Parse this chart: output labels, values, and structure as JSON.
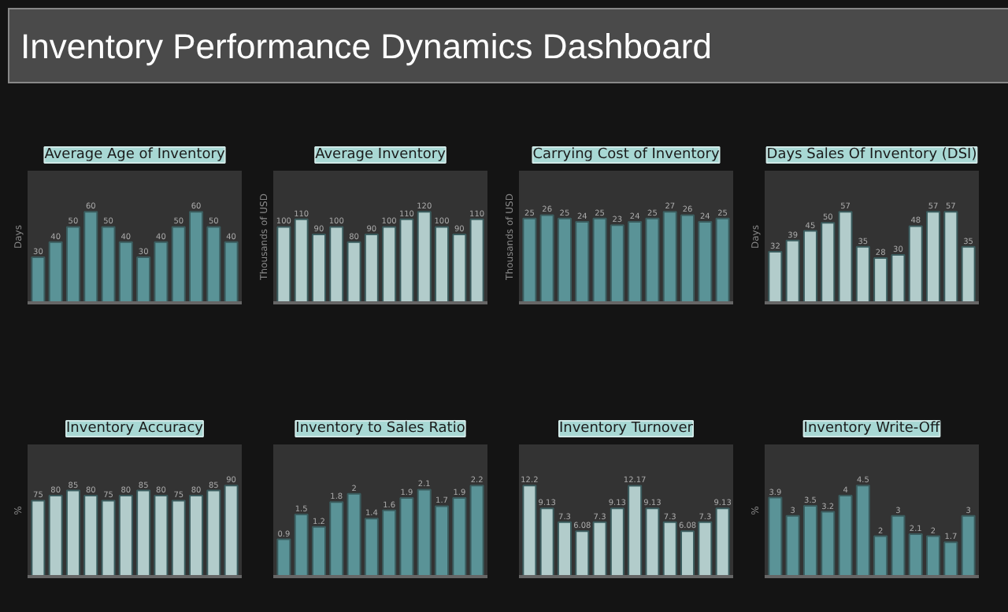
{
  "chart_data": [
    {
      "type": "other",
      "title": "Inventory Performance Dynamics Dashboard"
    },
    {
      "type": "bar",
      "title": "Average Age of Inventory",
      "ylabel": "Days",
      "categories": [
        null,
        null,
        null,
        null,
        null,
        null,
        null,
        null,
        null,
        null,
        null,
        null
      ],
      "values": [
        30,
        40,
        50,
        60,
        50,
        40,
        30,
        40,
        50,
        60,
        50,
        40
      ],
      "color": "#5a9397",
      "data_labels": true,
      "grid": false
    },
    {
      "type": "bar",
      "title": "Average Inventory",
      "ylabel": "Thousands of USD",
      "categories": [
        null,
        null,
        null,
        null,
        null,
        null,
        null,
        null,
        null,
        null,
        null,
        null
      ],
      "values": [
        100,
        110,
        90,
        100,
        80,
        90,
        100,
        110,
        120,
        100,
        90,
        110
      ],
      "color": "#b2cccb",
      "data_labels": true,
      "grid": false
    },
    {
      "type": "bar",
      "title": "Carrying Cost of Inventory",
      "ylabel": "Thousands of USD",
      "categories": [
        null,
        null,
        null,
        null,
        null,
        null,
        null,
        null,
        null,
        null,
        null,
        null
      ],
      "values": [
        25,
        26,
        25,
        24,
        25,
        23,
        24,
        25,
        27,
        26,
        24,
        25
      ],
      "color": "#5a9397",
      "data_labels": true,
      "grid": false
    },
    {
      "type": "bar",
      "title": "Days Sales Of Inventory (DSI)",
      "ylabel": "Days",
      "categories": [
        null,
        null,
        null,
        null,
        null,
        null,
        null,
        null,
        null,
        null,
        null,
        null
      ],
      "values": [
        32,
        39,
        45,
        50,
        57,
        35,
        28,
        30,
        48,
        57,
        57,
        35
      ],
      "color": "#b2cccb",
      "data_labels": true,
      "grid": false
    },
    {
      "type": "bar",
      "title": "Inventory Accuracy",
      "ylabel": "%",
      "categories": [
        null,
        null,
        null,
        null,
        null,
        null,
        null,
        null,
        null,
        null,
        null,
        null
      ],
      "values": [
        75,
        80,
        85,
        80,
        75,
        80,
        85,
        80,
        75,
        80,
        85,
        90
      ],
      "color": "#b2cccb",
      "data_labels": true,
      "grid": false
    },
    {
      "type": "bar",
      "title": "Inventory to Sales Ratio",
      "categories": [
        null,
        null,
        null,
        null,
        null,
        null,
        null,
        null,
        null,
        null,
        null,
        null
      ],
      "values": [
        0.9,
        1.5,
        1.2,
        1.8,
        2,
        1.4,
        1.6,
        1.9,
        2.1,
        1.7,
        1.9,
        2.2
      ],
      "color": "#5a9397",
      "data_labels": true,
      "grid": false
    },
    {
      "type": "bar",
      "title": "Inventory Turnover",
      "categories": [
        null,
        null,
        null,
        null,
        null,
        null,
        null,
        null,
        null,
        null,
        null,
        null
      ],
      "values": [
        12.2,
        9.13,
        7.3,
        6.08,
        7.3,
        9.13,
        12.17,
        9.13,
        7.3,
        6.08,
        7.3,
        9.13
      ],
      "color": "#b2cccb",
      "data_labels": true,
      "grid": false
    },
    {
      "type": "bar",
      "title": "Inventory Write-Off",
      "ylabel": "%",
      "categories": [
        null,
        null,
        null,
        null,
        null,
        null,
        null,
        null,
        null,
        null,
        null,
        null
      ],
      "values": [
        3.9,
        3,
        3.5,
        3.2,
        4,
        4.5,
        2,
        3,
        2.1,
        2,
        1.7,
        3
      ],
      "color": "#5a9397",
      "data_labels": true,
      "grid": false
    }
  ]
}
